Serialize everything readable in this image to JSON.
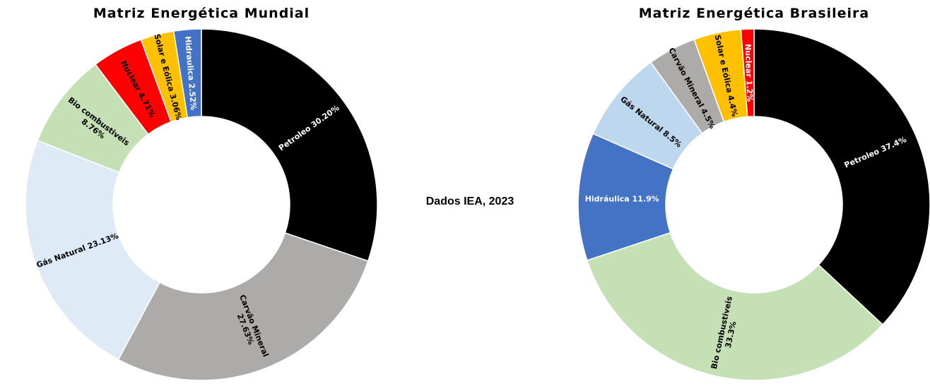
{
  "source_note": "Dados IEA, 2023",
  "chart_data": [
    {
      "type": "pie",
      "title": "Matriz Energética Mundial",
      "unit": "%",
      "slices": [
        {
          "label_lines": [
            "Petroleo 30.20%"
          ],
          "value": 30.2,
          "color": "#000000",
          "text_color": "#ffffff",
          "rotate": true
        },
        {
          "label_lines": [
            "Carvão Mineral",
            "27.63%"
          ],
          "value": 27.63,
          "color": "#adabaa",
          "text_color": "#000000",
          "rotate": true
        },
        {
          "label_lines": [
            "Gás Natural 23.13%"
          ],
          "value": 23.13,
          "color": "#deeaf6",
          "text_color": "#000000",
          "rotate": true
        },
        {
          "label_lines": [
            "Bio combustiveis",
            "8.76%"
          ],
          "value": 8.76,
          "color": "#c5e0b4",
          "text_color": "#000000",
          "rotate": true
        },
        {
          "label_lines": [
            "Nuclear 4.71%"
          ],
          "value": 4.71,
          "color": "#ff0000",
          "text_color": "#000000",
          "rotate": true
        },
        {
          "label_lines": [
            "Solar e Eólica 3.06%"
          ],
          "value": 3.06,
          "color": "#ffc000",
          "text_color": "#000000",
          "rotate": true
        },
        {
          "label_lines": [
            "Hidraulica 2.52%"
          ],
          "value": 2.52,
          "color": "#4472c4",
          "text_color": "#ffffff",
          "rotate": true
        }
      ]
    },
    {
      "type": "pie",
      "title": "Matriz Energética Brasileira",
      "unit": "%",
      "slices": [
        {
          "label_lines": [
            "Petroleo 37.4%"
          ],
          "value": 37.4,
          "color": "#000000",
          "text_color": "#ffffff",
          "rotate": true
        },
        {
          "label_lines": [
            "Bio combustiveis",
            "33.3%"
          ],
          "value": 33.3,
          "color": "#c5e0b4",
          "text_color": "#000000",
          "rotate": true
        },
        {
          "label_lines": [
            "Hidráulica 11.9%"
          ],
          "value": 11.9,
          "color": "#4472c4",
          "text_color": "#ffffff",
          "rotate": false
        },
        {
          "label_lines": [
            "Gás Natural 8.5%"
          ],
          "value": 8.5,
          "color": "#bdd7ee",
          "text_color": "#000000",
          "rotate": true
        },
        {
          "label_lines": [
            "Carvão Mineral 4.5%"
          ],
          "value": 4.5,
          "color": "#adabaa",
          "text_color": "#000000",
          "rotate": true
        },
        {
          "label_lines": [
            "Solar e Eólica 4.4%"
          ],
          "value": 4.4,
          "color": "#ffc000",
          "text_color": "#000000",
          "rotate": true
        },
        {
          "label_lines": [
            "Nuclear 1.2%"
          ],
          "value": 1.2,
          "color": "#ff0000",
          "text_color": "#ffffff",
          "rotate": true
        }
      ]
    }
  ]
}
